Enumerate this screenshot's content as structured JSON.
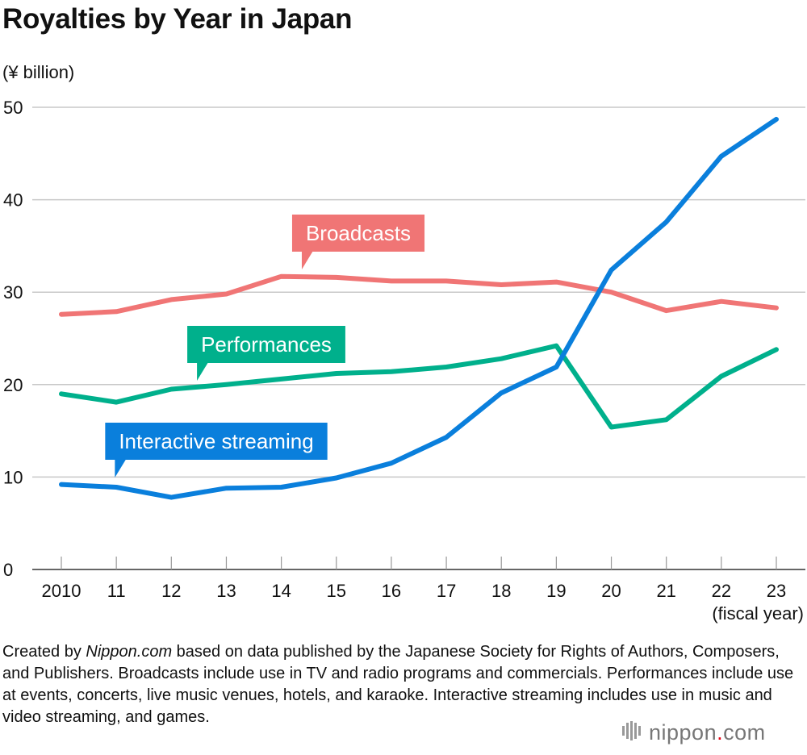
{
  "title": "Royalties by Year in Japan",
  "unit_label": "(¥ billion)",
  "fiscal_label": "(fiscal year)",
  "note": {
    "prefix": "Created by ",
    "source_name": "Nippon.com",
    "rest": " based on data published by the Japanese Society for Rights of Authors, Composers, and Publishers. Broadcasts include use in TV and radio programs and commercials. Performances include use at events, concerts, live music venues, hotels, and karaoke. Interactive streaming includes use in music and video streaming, and games."
  },
  "logo": {
    "text": "nippon",
    "dot": ".",
    "suffix": "com"
  },
  "chart_data": {
    "type": "line",
    "title": "Royalties by Year in Japan",
    "ylabel": "(¥ billion)",
    "xlabel": "(fiscal year)",
    "x": [
      "2010",
      "11",
      "12",
      "13",
      "14",
      "15",
      "16",
      "17",
      "18",
      "19",
      "20",
      "21",
      "22",
      "23"
    ],
    "yticks": [
      0,
      10,
      20,
      30,
      40,
      50
    ],
    "ylim": [
      0,
      50
    ],
    "grid": true,
    "series": [
      {
        "name": "Broadcasts",
        "color": "#f07575",
        "values": [
          27.6,
          27.9,
          29.2,
          29.8,
          31.7,
          31.6,
          31.2,
          31.2,
          30.8,
          31.1,
          30.0,
          28.0,
          29.0,
          28.3
        ]
      },
      {
        "name": "Performances",
        "color": "#00b08c",
        "values": [
          19.0,
          18.1,
          19.5,
          20.0,
          20.6,
          21.2,
          21.4,
          21.9,
          22.8,
          24.2,
          15.4,
          16.2,
          20.9,
          23.8
        ]
      },
      {
        "name": "Interactive streaming",
        "color": "#0a7fdc",
        "values": [
          9.2,
          8.9,
          7.8,
          8.8,
          8.9,
          9.9,
          11.5,
          14.3,
          19.1,
          21.9,
          32.4,
          37.6,
          44.7,
          48.7
        ]
      }
    ]
  }
}
